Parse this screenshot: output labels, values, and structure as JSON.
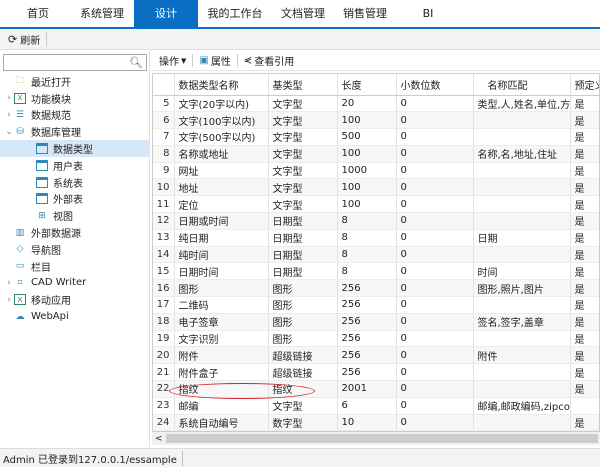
{
  "tabs": [
    {
      "label": "首页"
    },
    {
      "label": "系统管理"
    },
    {
      "label": "设计",
      "active": true
    },
    {
      "label": "我的工作台"
    },
    {
      "label": "文档管理"
    },
    {
      "label": "销售管理"
    },
    {
      "label": "BI"
    }
  ],
  "toolbar": {
    "refresh": "刷新"
  },
  "search": {
    "placeholder": ""
  },
  "tree": [
    {
      "label": "最近打开",
      "icon": "folder-icon",
      "level": 0,
      "arrow": ""
    },
    {
      "label": "功能模块",
      "icon": "excel-icon",
      "level": 0,
      "arrow": ">"
    },
    {
      "label": "数据规范",
      "icon": "list-icon",
      "level": 0,
      "arrow": ">"
    },
    {
      "label": "数据库管理",
      "icon": "database-icon",
      "level": 0,
      "arrow": "v"
    },
    {
      "label": "数据类型",
      "icon": "table-icon",
      "level": 1,
      "arrow": "",
      "selected": true
    },
    {
      "label": "用户表",
      "icon": "table-icon",
      "level": 1,
      "arrow": ""
    },
    {
      "label": "系统表",
      "icon": "table-icon",
      "level": 1,
      "arrow": ""
    },
    {
      "label": "外部表",
      "icon": "table-icon",
      "level": 1,
      "arrow": ""
    },
    {
      "label": "视图",
      "icon": "grid-icon",
      "level": 1,
      "arrow": ""
    },
    {
      "label": "外部数据源",
      "icon": "chart-icon",
      "level": 0,
      "arrow": ""
    },
    {
      "label": "导航图",
      "icon": "navigation-icon",
      "level": 0,
      "arrow": ""
    },
    {
      "label": "栏目",
      "icon": "column-icon",
      "level": 0,
      "arrow": ""
    },
    {
      "label": "CAD Writer",
      "icon": "cad-icon",
      "level": 0,
      "arrow": ">"
    },
    {
      "label": "移动应用",
      "icon": "excel-icon",
      "level": 0,
      "arrow": ">"
    },
    {
      "label": "WebApi",
      "icon": "cloud-icon",
      "level": 0,
      "arrow": ""
    }
  ],
  "right_toolbar": {
    "operate": "操作",
    "properties": "属性",
    "references": "查看引用"
  },
  "table": {
    "columns": [
      "",
      "数据类型名称",
      "基类型",
      "长度",
      "小数位数",
      "名称匹配",
      "预定义"
    ],
    "rows": [
      [
        "5",
        "文字(20字以内)",
        "文字型",
        "20",
        "0",
        "类型,人,姓名,单位,方式",
        "是"
      ],
      [
        "6",
        "文字(100字以内)",
        "文字型",
        "100",
        "0",
        "",
        "是"
      ],
      [
        "7",
        "文字(500字以内)",
        "文字型",
        "500",
        "0",
        "",
        "是"
      ],
      [
        "8",
        "名称或地址",
        "文字型",
        "100",
        "0",
        "名称,名,地址,住址",
        "是"
      ],
      [
        "9",
        "网址",
        "文字型",
        "1000",
        "0",
        "",
        "是"
      ],
      [
        "10",
        "地址",
        "文字型",
        "100",
        "0",
        "",
        "是"
      ],
      [
        "11",
        "定位",
        "文字型",
        "100",
        "0",
        "",
        "是"
      ],
      [
        "12",
        "日期或时间",
        "日期型",
        "8",
        "0",
        "",
        "是"
      ],
      [
        "13",
        "纯日期",
        "日期型",
        "8",
        "0",
        "日期",
        "是"
      ],
      [
        "14",
        "纯时间",
        "日期型",
        "8",
        "0",
        "",
        "是"
      ],
      [
        "15",
        "日期时间",
        "日期型",
        "8",
        "0",
        "时间",
        "是"
      ],
      [
        "16",
        "图形",
        "图形",
        "256",
        "0",
        "图形,照片,图片",
        "是"
      ],
      [
        "17",
        "二维码",
        "图形",
        "256",
        "0",
        "",
        "是"
      ],
      [
        "18",
        "电子签章",
        "图形",
        "256",
        "0",
        "签名,签字,盖章",
        "是"
      ],
      [
        "19",
        "文字识别",
        "图形",
        "256",
        "0",
        "",
        "是"
      ],
      [
        "20",
        "附件",
        "超级链接",
        "256",
        "0",
        "附件",
        "是"
      ],
      [
        "21",
        "附件盒子",
        "超级链接",
        "256",
        "0",
        "",
        "是"
      ],
      [
        "22",
        "指纹",
        "指纹",
        "2001",
        "0",
        "",
        "是"
      ],
      [
        "23",
        "邮编",
        "文字型",
        "6",
        "0",
        "邮编,邮政编码,zipcode",
        ""
      ],
      [
        "24",
        "系统自动编号",
        "数字型",
        "10",
        "0",
        "",
        "是"
      ]
    ]
  },
  "status": {
    "text": "Admin 已登录到127.0.0.1/essample"
  },
  "colors": {
    "accent": "#0a6fc2",
    "highlight_ellipse": "#d0242a",
    "selected_row": "#d6e7f7"
  }
}
